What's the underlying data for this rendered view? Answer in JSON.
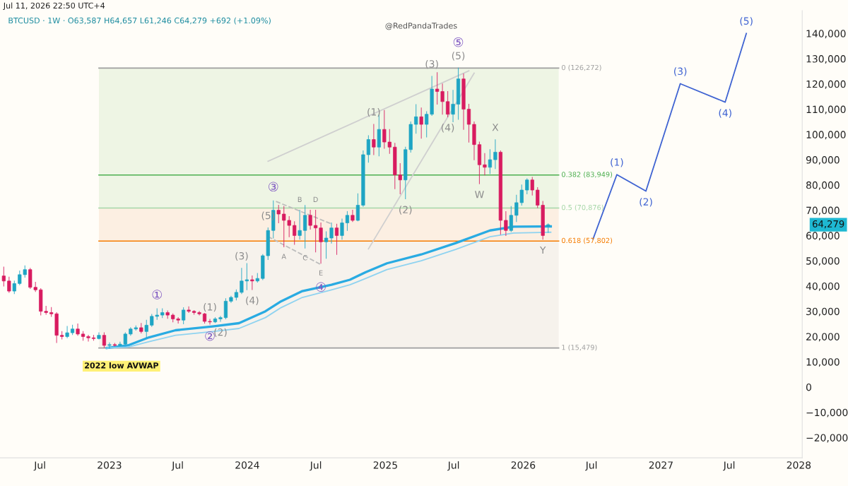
{
  "chart_data": {
    "type": "candlestick",
    "title": "BTCUSD · 1W · O63,587 H64,657 L61,246 C64,279 +692 (+1.09%)",
    "subtitle": "Jul 11, 2026 22:50 UTC+4",
    "x": [
      "2022-03-27",
      "2022-04-10",
      "2022-04-24",
      "2022-05-08",
      "2022-05-22",
      "2022-06-05",
      "2022-06-19",
      "2022-07-03",
      "2022-07-17",
      "2022-07-31",
      "2022-08-14",
      "2022-08-28",
      "2022-09-11",
      "2022-09-25",
      "2022-10-09",
      "2022-10-23",
      "2022-11-06",
      "2022-11-20",
      "2022-12-04",
      "2022-12-18",
      "2023-01-01",
      "2023-01-15",
      "2023-01-29",
      "2023-02-12",
      "2023-02-26",
      "2023-03-12",
      "2023-03-26",
      "2023-04-09",
      "2023-04-23",
      "2023-05-07",
      "2023-05-21",
      "2023-06-04",
      "2023-06-18",
      "2023-07-02",
      "2023-07-16",
      "2023-07-30",
      "2023-08-13",
      "2023-08-27",
      "2023-09-10",
      "2023-09-24",
      "2023-10-08",
      "2023-10-22",
      "2023-11-05",
      "2023-11-19",
      "2023-12-03",
      "2023-12-17",
      "2023-12-31",
      "2024-01-14",
      "2024-01-28",
      "2024-02-11",
      "2024-02-25",
      "2024-03-10",
      "2024-03-24",
      "2024-04-07",
      "2024-04-21",
      "2024-05-05",
      "2024-05-19",
      "2024-06-02",
      "2024-06-16",
      "2024-06-30",
      "2024-07-14",
      "2024-07-28",
      "2024-08-11",
      "2024-08-25",
      "2024-09-08",
      "2024-09-22",
      "2024-10-06",
      "2024-10-20",
      "2024-11-03",
      "2024-11-17",
      "2024-12-01",
      "2024-12-15",
      "2024-12-29",
      "2025-01-12",
      "2025-01-26",
      "2025-02-09",
      "2025-02-23",
      "2025-03-09",
      "2025-03-23",
      "2025-04-06",
      "2025-04-20",
      "2025-05-04",
      "2025-05-18",
      "2025-06-01",
      "2025-06-15",
      "2025-06-29",
      "2025-07-13",
      "2025-07-27",
      "2025-08-10",
      "2025-08-24",
      "2025-09-07",
      "2025-09-21",
      "2025-10-05",
      "2025-10-19",
      "2025-11-02",
      "2025-11-16",
      "2025-11-30",
      "2025-12-14",
      "2025-12-28",
      "2026-01-11",
      "2026-01-25",
      "2026-02-08",
      "2026-02-22",
      "2026-03-08"
    ],
    "ohlc": [
      [
        44000,
        47500,
        40000,
        42000
      ],
      [
        42000,
        43500,
        37500,
        38000
      ],
      [
        38000,
        42000,
        37000,
        41000
      ],
      [
        41000,
        46000,
        40500,
        44500
      ],
      [
        44500,
        48000,
        43500,
        46500
      ],
      [
        46500,
        47000,
        39000,
        39500
      ],
      [
        39500,
        41500,
        37800,
        38500
      ],
      [
        38500,
        39000,
        28500,
        30000
      ],
      [
        30000,
        32000,
        28800,
        29500
      ],
      [
        29500,
        31500,
        28000,
        29000
      ],
      [
        29000,
        29500,
        17600,
        20500
      ],
      [
        20500,
        22000,
        19000,
        20000
      ],
      [
        20000,
        24000,
        19500,
        21500
      ],
      [
        21500,
        24500,
        20800,
        23000
      ],
      [
        23000,
        25000,
        20500,
        21000
      ],
      [
        21000,
        22000,
        18500,
        20000
      ],
      [
        20000,
        20500,
        18200,
        19500
      ],
      [
        19500,
        20500,
        18500,
        19200
      ],
      [
        19200,
        21500,
        19000,
        20500
      ],
      [
        20500,
        21500,
        15600,
        16500
      ],
      [
        16500,
        17500,
        15479,
        16800
      ],
      [
        16800,
        17300,
        16300,
        16500
      ],
      [
        16500,
        17800,
        16400,
        17000
      ],
      [
        17000,
        21500,
        16900,
        21000
      ],
      [
        21000,
        23500,
        20500,
        23000
      ],
      [
        23000,
        24200,
        22500,
        23500
      ],
      [
        23500,
        25200,
        21400,
        22000
      ],
      [
        22000,
        26500,
        19600,
        24500
      ],
      [
        24500,
        28800,
        24000,
        28000
      ],
      [
        28000,
        31000,
        26800,
        28500
      ],
      [
        28500,
        31000,
        27500,
        29500
      ],
      [
        29500,
        30200,
        27200,
        28500
      ],
      [
        28500,
        29000,
        25800,
        27000
      ],
      [
        27000,
        27500,
        25300,
        26500
      ],
      [
        26500,
        31400,
        25000,
        30500
      ],
      [
        30500,
        31800,
        29500,
        30000
      ],
      [
        30000,
        30300,
        28800,
        29500
      ],
      [
        29500,
        30000,
        28500,
        29000
      ],
      [
        29000,
        29200,
        25300,
        26000
      ],
      [
        26000,
        26800,
        24900,
        25800
      ],
      [
        25800,
        27500,
        25500,
        27000
      ],
      [
        27000,
        28000,
        26000,
        27500
      ],
      [
        27500,
        35000,
        27000,
        34000
      ],
      [
        34000,
        36000,
        33500,
        35500
      ],
      [
        35500,
        38500,
        34500,
        37500
      ],
      [
        37500,
        47000,
        37000,
        42000
      ],
      [
        42000,
        48900,
        38500,
        42500
      ],
      [
        42500,
        44000,
        38600,
        42000
      ],
      [
        42000,
        45000,
        41500,
        43000
      ],
      [
        43000,
        52500,
        42500,
        52000
      ],
      [
        52000,
        63000,
        50500,
        62000
      ],
      [
        62000,
        73700,
        59000,
        70000
      ],
      [
        70000,
        72000,
        65000,
        68500
      ],
      [
        68500,
        71500,
        55500,
        66000
      ],
      [
        66000,
        67500,
        59500,
        64000
      ],
      [
        64000,
        65500,
        56500,
        60000
      ],
      [
        60000,
        70000,
        58500,
        62000
      ],
      [
        62000,
        71900,
        55000,
        68000
      ],
      [
        68000,
        70000,
        62500,
        64000
      ],
      [
        64000,
        70000,
        53500,
        63000
      ],
      [
        63000,
        65000,
        49000,
        57500
      ],
      [
        57500,
        61500,
        51000,
        59000
      ],
      [
        59000,
        65000,
        57000,
        63000
      ],
      [
        63000,
        64500,
        52500,
        60000
      ],
      [
        60000,
        66500,
        58500,
        65000
      ],
      [
        65000,
        69500,
        62000,
        68000
      ],
      [
        68000,
        70000,
        65500,
        66000
      ],
      [
        66000,
        76500,
        65800,
        72000
      ],
      [
        72000,
        93500,
        71500,
        92000
      ],
      [
        92000,
        99500,
        89000,
        98000
      ],
      [
        98000,
        104000,
        92000,
        95000
      ],
      [
        95000,
        108000,
        91500,
        102000
      ],
      [
        102000,
        109500,
        94500,
        97000
      ],
      [
        97000,
        102000,
        92500,
        95000
      ],
      [
        95000,
        96500,
        78500,
        84000
      ],
      [
        84000,
        88500,
        76500,
        82000
      ],
      [
        82000,
        95000,
        74500,
        94000
      ],
      [
        94000,
        105000,
        93000,
        104000
      ],
      [
        104000,
        111800,
        100500,
        107000
      ],
      [
        107000,
        110500,
        98500,
        104000
      ],
      [
        104000,
        109000,
        99000,
        108000
      ],
      [
        108000,
        123000,
        107500,
        118000
      ],
      [
        118000,
        124500,
        112000,
        117000
      ],
      [
        117000,
        120000,
        108000,
        113000
      ],
      [
        113000,
        117000,
        107000,
        108000
      ],
      [
        108000,
        117500,
        105000,
        112000
      ],
      [
        112000,
        126272,
        106000,
        122000
      ],
      [
        122000,
        124000,
        102000,
        110000
      ],
      [
        110000,
        112000,
        97000,
        104000
      ],
      [
        104000,
        105000,
        90000,
        96000
      ],
      [
        96000,
        97000,
        80500,
        88000
      ],
      [
        88000,
        92500,
        84000,
        87000
      ],
      [
        87000,
        94000,
        84500,
        90000
      ],
      [
        90000,
        97900,
        86500,
        93000
      ],
      [
        93000,
        93500,
        60500,
        66000
      ],
      [
        66000,
        69500,
        60000,
        62000
      ],
      [
        62000,
        71500,
        61500,
        68000
      ],
      [
        68000,
        76000,
        65500,
        73000
      ],
      [
        73000,
        80000,
        72000,
        78000
      ],
      [
        78000,
        82500,
        76500,
        82000
      ],
      [
        82000,
        83000,
        76000,
        78000
      ],
      [
        78000,
        79000,
        71000,
        72000
      ],
      [
        72000,
        73500,
        58500,
        60000
      ],
      [
        63587,
        64657,
        61246,
        64279
      ]
    ],
    "colors": [
      "#d81b60",
      "#d81b60",
      "#1ea5c4",
      "#1ea5c4",
      "#1ea5c4",
      "#d81b60",
      "#d81b60",
      "#d81b60",
      "#d81b60",
      "#d81b60",
      "#d81b60",
      "#d81b60",
      "#1ea5c4",
      "#1ea5c4",
      "#d81b60",
      "#d81b60",
      "#d81b60",
      "#d81b60",
      "#1ea5c4",
      "#d81b60",
      "#1ea5c4",
      "#d81b60",
      "#1ea5c4",
      "#1ea5c4",
      "#1ea5c4",
      "#1ea5c4",
      "#d81b60",
      "#1ea5c4",
      "#1ea5c4",
      "#1ea5c4",
      "#1ea5c4",
      "#d81b60",
      "#d81b60",
      "#d81b60",
      "#1ea5c4",
      "#d81b60",
      "#d81b60",
      "#d81b60",
      "#d81b60",
      "#d81b60",
      "#1ea5c4",
      "#1ea5c4",
      "#1ea5c4",
      "#1ea5c4",
      "#1ea5c4",
      "#1ea5c4",
      "#1ea5c4",
      "#d81b60",
      "#1ea5c4",
      "#1ea5c4",
      "#1ea5c4",
      "#1ea5c4",
      "#d81b60",
      "#d81b60",
      "#d81b60",
      "#d81b60",
      "#1ea5c4",
      "#1ea5c4",
      "#d81b60",
      "#d81b60",
      "#d81b60",
      "#1ea5c4",
      "#1ea5c4",
      "#d81b60",
      "#1ea5c4",
      "#1ea5c4",
      "#d81b60",
      "#1ea5c4",
      "#1ea5c4",
      "#1ea5c4",
      "#d81b60",
      "#1ea5c4",
      "#d81b60",
      "#d81b60",
      "#d81b60",
      "#d81b60",
      "#1ea5c4",
      "#1ea5c4",
      "#1ea5c4",
      "#d81b60",
      "#1ea5c4",
      "#1ea5c4",
      "#d81b60",
      "#d81b60",
      "#d81b60",
      "#1ea5c4",
      "#1ea5c4",
      "#d81b60",
      "#d81b60",
      "#d81b60",
      "#d81b60",
      "#d81b60",
      "#1ea5c4",
      "#1ea5c4",
      "#d81b60",
      "#d81b60",
      "#1ea5c4",
      "#1ea5c4",
      "#1ea5c4",
      "#1ea5c4",
      "#d81b60",
      "#d81b60",
      "#d81b60",
      "#1ea5c4"
    ],
    "value_labels": [
      null,
      null,
      null,
      null,
      null,
      null,
      null,
      null,
      null,
      null,
      null,
      null,
      null,
      null,
      null,
      null,
      null,
      null,
      null,
      null,
      null,
      null,
      null,
      null,
      null,
      null,
      null,
      null,
      null,
      null,
      null,
      null,
      null,
      null,
      null,
      null,
      null,
      null,
      null,
      null,
      null,
      null,
      null,
      null,
      null,
      null,
      null,
      null,
      null,
      null,
      null,
      null,
      null,
      null,
      null,
      null,
      null,
      null,
      null,
      null,
      null,
      null,
      null,
      null,
      null,
      null,
      null,
      null,
      null,
      null,
      null,
      null,
      null,
      null,
      null,
      null,
      null,
      null,
      null,
      null,
      null,
      null,
      null,
      null,
      null,
      null,
      null,
      null,
      null,
      null,
      null,
      null,
      null,
      null,
      null,
      null,
      null,
      null,
      null,
      null,
      null,
      null,
      null,
      "64,279"
    ],
    "series": [
      {
        "type": "line",
        "color": "#29abe2",
        "x": [
          "2022-12-25",
          "2023-02-19",
          "2023-04-16",
          "2023-06-25",
          "2023-10-01",
          "2023-12-10",
          "2024-02-18",
          "2024-03-31",
          "2024-05-26",
          "2024-08-11",
          "2024-09-29",
          "2024-11-10",
          "2025-01-05",
          "2025-04-06",
          "2025-07-06",
          "2025-10-05",
          "2025-12-07",
          "2026-03-15"
        ],
        "values": [
          15500,
          16500,
          19700,
          22500,
          24000,
          25300,
          30000,
          34000,
          38000,
          40500,
          42500,
          45500,
          49000,
          52500,
          57000,
          62000,
          63500,
          63600
        ]
      },
      {
        "type": "line",
        "color": "#8fd3f0",
        "x": [
          "2022-12-25",
          "2023-02-19",
          "2023-04-16",
          "2023-06-25",
          "2023-10-01",
          "2023-12-10",
          "2024-02-18",
          "2024-03-31",
          "2024-05-26",
          "2024-08-11",
          "2024-09-29",
          "2024-11-10",
          "2025-01-05",
          "2025-04-06",
          "2025-07-06",
          "2025-10-05",
          "2025-12-07",
          "2026-03-15"
        ],
        "values": [
          15500,
          15800,
          18000,
          20500,
          22000,
          23200,
          27500,
          31500,
          35500,
          38500,
          40500,
          43000,
          46500,
          50000,
          54500,
          59500,
          61000,
          61300
        ]
      },
      {
        "type": "line",
        "color": "#cfcfcf",
        "x": [
          "2024-02-25",
          "2025-08-10"
        ],
        "values": [
          89400,
          125200
        ]
      },
      {
        "type": "line",
        "color": "#cfcfcf",
        "x": [
          "2024-11-17",
          "2025-08-24"
        ],
        "values": [
          54700,
          124300
        ]
      },
      {
        "type": "line",
        "color": "#bdbdbd",
        "line_style": "dashed",
        "x": [
          "2024-03-17",
          "2024-08-11"
        ],
        "values": [
          73500,
          64600
        ]
      },
      {
        "type": "line",
        "color": "#bdbdbd",
        "line_style": "dashed",
        "x": [
          "2024-02-25",
          "2024-07-14"
        ],
        "values": [
          59600,
          48500
        ]
      },
      {
        "type": "line",
        "color": "#3f63d2",
        "x": [
          "2026-07-05",
          "2026-09-06",
          "2026-11-22",
          "2027-02-21",
          "2027-06-20",
          "2027-08-15"
        ],
        "values": [
          58600,
          84100,
          77600,
          120100,
          112800,
          140000
        ]
      }
    ],
    "ref_lines": [
      {
        "axis": "y",
        "value": 126272,
        "label": "0 (126,272)",
        "color": "#9e9e9e"
      },
      {
        "axis": "y",
        "value": 83949,
        "label": "0.382 (83,949)",
        "color": "#4caf50"
      },
      {
        "axis": "y",
        "value": 70876,
        "label": "0.5 (70,876)",
        "color": "#a5d6a7"
      },
      {
        "axis": "y",
        "value": 57802,
        "label": "0.618 (57,802)",
        "color": "#f57c00"
      },
      {
        "axis": "y",
        "value": 15479,
        "label": "1 (15,479)",
        "color": "#9e9e9e"
      }
    ],
    "bands": [
      {
        "axis": "y",
        "from": 70876,
        "to": 126272,
        "color": "#eef5e4"
      },
      {
        "axis": "y",
        "from": 57802,
        "to": 70876,
        "color": "#fcefe2"
      },
      {
        "axis": "y",
        "from": 15479,
        "to": 57802,
        "color": "#f6f2ec"
      }
    ],
    "annotations": [
      {
        "text": "①",
        "x": "2023-05-07",
        "y": 31000
      },
      {
        "text": "②",
        "x": "2023-09-24",
        "y": 24900
      },
      {
        "text": "③",
        "x": "2024-03-10",
        "y": 73700
      },
      {
        "text": "(1)",
        "x": "2023-09-24",
        "y": 26800
      },
      {
        "text": "(2)",
        "x": "2023-10-22",
        "y": 26000
      },
      {
        "text": "(3)",
        "x": "2023-12-17",
        "y": 47000
      },
      {
        "text": "(4)",
        "x": "2024-01-14",
        "y": 38600
      },
      {
        "text": "(5)",
        "x": "2024-02-25",
        "y": 63000
      },
      {
        "text": "A",
        "x": "2024-04-07",
        "y": 55500
      },
      {
        "text": "B",
        "x": "2024-05-19",
        "y": 70000
      },
      {
        "text": "C",
        "x": "2024-06-02",
        "y": 55000
      },
      {
        "text": "D",
        "x": "2024-06-30",
        "y": 70000
      },
      {
        "text": "E",
        "x": "2024-07-14",
        "y": 49000
      },
      {
        "text": "④",
        "x": "2024-07-14",
        "y": 49000
      },
      {
        "text": "(1)",
        "x": "2024-12-01",
        "y": 104000
      },
      {
        "text": "(2)",
        "x": "2025-02-23",
        "y": 74500
      },
      {
        "text": "(3)",
        "x": "2025-05-04",
        "y": 123000
      },
      {
        "text": "(4)",
        "x": "2025-06-15",
        "y": 107000
      },
      {
        "text": "(5)",
        "x": "2025-07-13",
        "y": 126272
      },
      {
        "text": "⑤",
        "x": "2025-07-13",
        "y": 126272
      },
      {
        "text": "W",
        "x": "2025-09-07",
        "y": 80500
      },
      {
        "text": "X",
        "x": "2025-10-19",
        "y": 97900
      },
      {
        "text": "Y",
        "x": "2026-02-22",
        "y": 58500
      },
      {
        "text": "(1)",
        "x": "2026-09-06",
        "y": 84100
      },
      {
        "text": "(2)",
        "x": "2026-11-22",
        "y": 77600
      },
      {
        "text": "(3)",
        "x": "2027-02-21",
        "y": 120100
      },
      {
        "text": "(4)",
        "x": "2027-06-20",
        "y": 112800
      },
      {
        "text": "(5)",
        "x": "2027-08-15",
        "y": 140000
      },
      "2022 low AVWAP",
      "@RedPandaTrades"
    ],
    "xlim": [
      "2022-03-17",
      "2028-01-10"
    ],
    "xticks": [
      {
        "value": "2022-07-01",
        "label": "Jul"
      },
      {
        "value": "2023-01-01",
        "label": "2023"
      },
      {
        "value": "2023-07-01",
        "label": "Jul"
      },
      {
        "value": "2024-01-01",
        "label": "2024"
      },
      {
        "value": "2024-07-01",
        "label": "Jul"
      },
      {
        "value": "2025-01-01",
        "label": "2025"
      },
      {
        "value": "2025-07-01",
        "label": "Jul"
      },
      {
        "value": "2026-01-01",
        "label": "2026"
      },
      {
        "value": "2026-07-01",
        "label": "Jul"
      },
      {
        "value": "2027-01-01",
        "label": "2027"
      },
      {
        "value": "2027-07-01",
        "label": "Jul"
      },
      {
        "value": "2028-01-01",
        "label": "2028"
      }
    ],
    "ylim": [
      -28000,
      149000
    ],
    "yticks": [
      {
        "value": -20000,
        "label": "−20,000"
      },
      {
        "value": -10000,
        "label": "−10,000"
      },
      {
        "value": 0,
        "label": "0"
      },
      {
        "value": 10000,
        "label": "10,000"
      },
      {
        "value": 20000,
        "label": "20,000"
      },
      {
        "value": 30000,
        "label": "30,000"
      },
      {
        "value": 40000,
        "label": "40,000"
      },
      {
        "value": 50000,
        "label": "50,000"
      },
      {
        "value": 60000,
        "label": "60,000"
      },
      {
        "value": 70000,
        "label": "70,000"
      },
      {
        "value": 80000,
        "label": "80,000"
      },
      {
        "value": 90000,
        "label": "90,000"
      },
      {
        "value": 100000,
        "label": "100,000"
      },
      {
        "value": 110000,
        "label": "110,000"
      },
      {
        "value": 120000,
        "label": "120,000"
      },
      {
        "value": 130000,
        "label": "130,000"
      },
      {
        "value": 140000,
        "label": "140,000"
      }
    ],
    "grid": false,
    "legend": false
  }
}
